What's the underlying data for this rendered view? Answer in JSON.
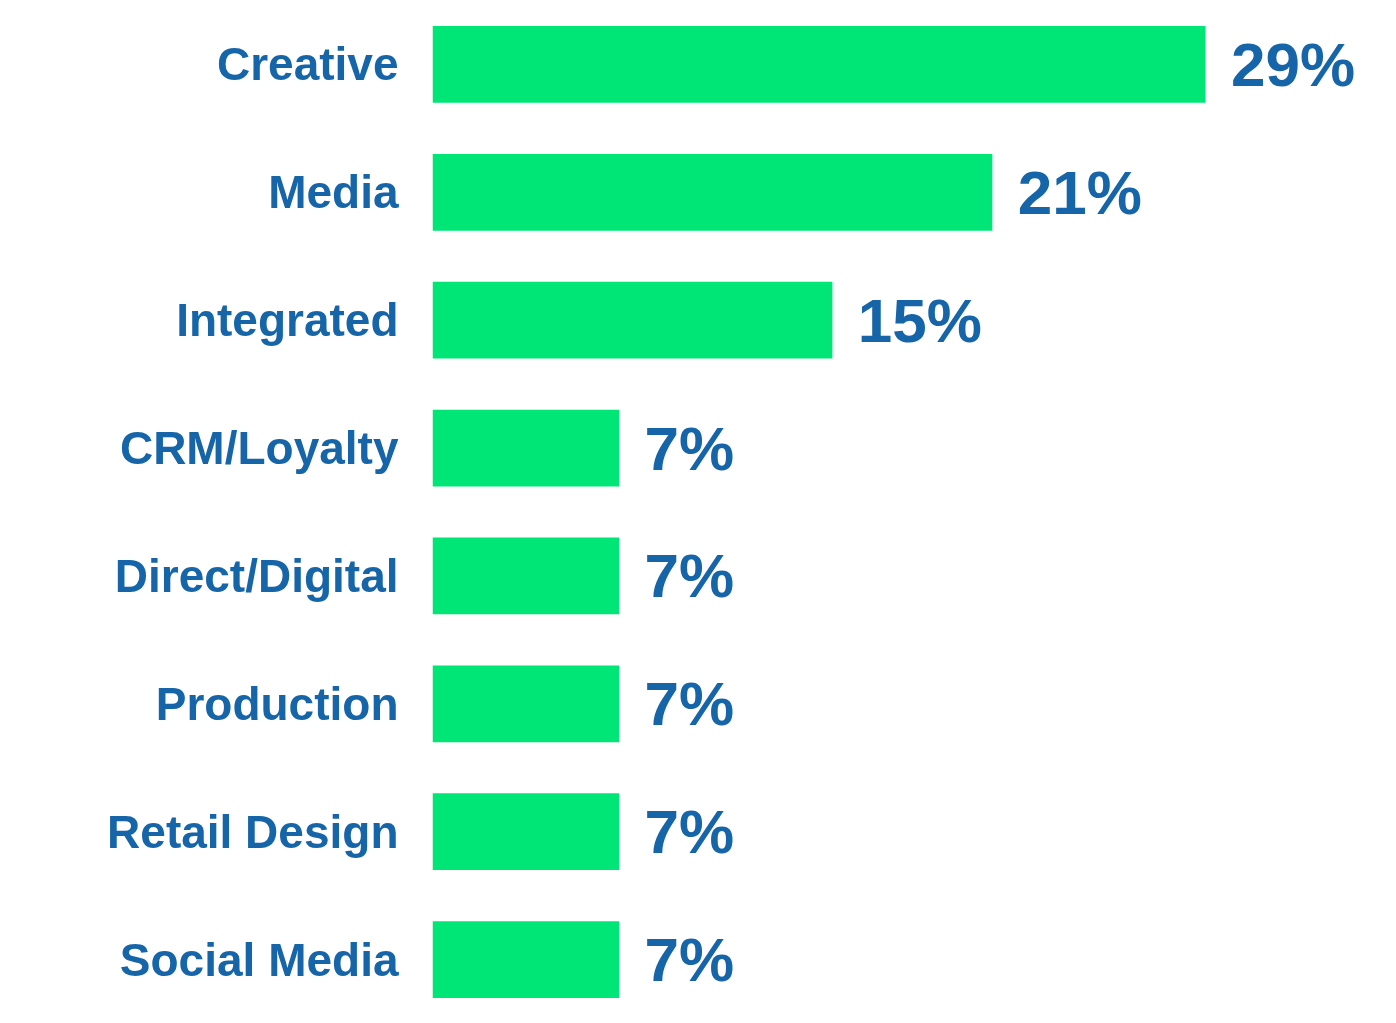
{
  "chart_data": {
    "type": "bar",
    "orientation": "horizontal",
    "categories": [
      "Creative",
      "Media",
      "Integrated",
      "CRM/Loyalty",
      "Direct/Digital",
      "Production",
      "Retail Design",
      "Social Media"
    ],
    "values": [
      29,
      21,
      15,
      7,
      7,
      7,
      7,
      7
    ],
    "value_labels": [
      "29%",
      "21%",
      "15%",
      "7%",
      "7%",
      "7%",
      "7%",
      "7%"
    ],
    "color": "#00e676",
    "grid": false
  }
}
